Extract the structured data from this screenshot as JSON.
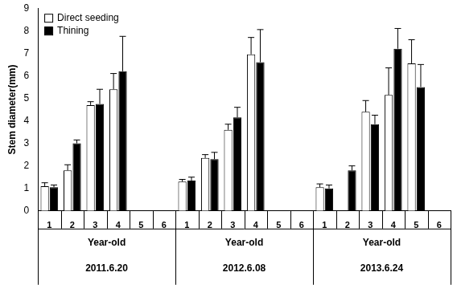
{
  "chart_data": {
    "type": "bar",
    "y_label": "Stem diameter(mm)",
    "categories": [
      "1",
      "2",
      "3",
      "4",
      "5",
      "6",
      "1",
      "2",
      "3",
      "4",
      "5",
      "6",
      "1",
      "2",
      "3",
      "4",
      "5",
      "6"
    ],
    "groups": [
      {
        "label": "Year-old",
        "date": "2011.6.20"
      },
      {
        "label": "Year-old",
        "date": "2012.6.08"
      },
      {
        "label": "Year-old",
        "date": "2013.6.24"
      }
    ],
    "series": [
      {
        "name": "Direct seeding",
        "color": "#ffffff",
        "values": [
          1.1,
          1.8,
          4.7,
          5.4,
          null,
          null,
          1.3,
          2.35,
          3.6,
          6.95,
          null,
          null,
          1.05,
          null,
          4.4,
          5.15,
          6.55,
          null
        ],
        "errors": [
          0.15,
          0.25,
          0.15,
          0.7,
          null,
          null,
          0.1,
          0.15,
          0.25,
          0.75,
          null,
          null,
          0.15,
          null,
          0.5,
          1.2,
          1.05,
          null
        ]
      },
      {
        "name": "Thining",
        "color": "#000000",
        "values": [
          1.05,
          3.0,
          4.75,
          6.2,
          null,
          null,
          1.35,
          2.3,
          4.15,
          6.6,
          null,
          null,
          1.0,
          1.8,
          3.85,
          7.2,
          5.5,
          null
        ],
        "errors": [
          0.1,
          0.15,
          0.65,
          1.55,
          null,
          null,
          0.15,
          0.3,
          0.45,
          1.45,
          null,
          null,
          0.15,
          0.2,
          0.4,
          0.9,
          1.0,
          null
        ]
      }
    ],
    "ylim": [
      0,
      9
    ],
    "yticks": [
      0,
      1,
      2,
      3,
      4,
      5,
      6,
      7,
      8,
      9
    ],
    "grid": false,
    "legend": "upper left"
  }
}
